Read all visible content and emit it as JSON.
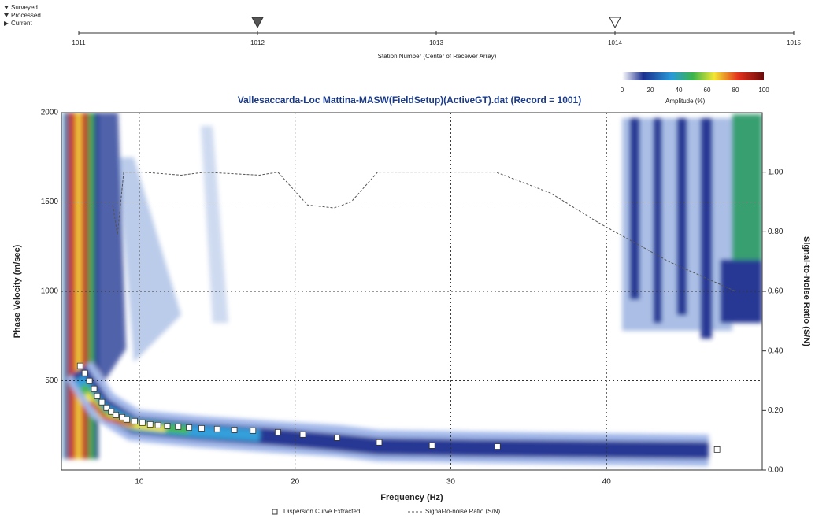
{
  "station_bar": {
    "legend": [
      "Surveyed",
      "Processed",
      "Current"
    ],
    "xlim": [
      1011,
      1015
    ],
    "ticks": [
      1011,
      1012,
      1013,
      1014,
      1015
    ],
    "label": "Station Number (Center of Receiver Array)",
    "marked": [
      1012,
      1014
    ]
  },
  "chart_data": {
    "type": "scatter",
    "title": "Vallesaccarda-Loc Mattina-MASW(FieldSetup)(ActiveGT).dat (Record = 1001)",
    "xlabel": "Frequency (Hz)",
    "ylabel": "Phase Velocity (m/sec)",
    "y2label": "Signal-to-Noise Ratio (S/N)",
    "xlim": [
      5,
      50
    ],
    "xticks": [
      10,
      20,
      30,
      40
    ],
    "ylim": [
      0,
      2000
    ],
    "yticks": [
      500,
      1000,
      1500,
      2000
    ],
    "y2lim": [
      0,
      1.2
    ],
    "y2ticks": [
      {
        "value": 0,
        "label": "0.00"
      },
      {
        "value": 0.2,
        "label": "0.20"
      },
      {
        "value": 0.4,
        "label": "0.40"
      },
      {
        "value": 0.6,
        "label": "0.60"
      },
      {
        "value": 0.8,
        "label": "0.80"
      },
      {
        "value": 1,
        "label": "1.00"
      }
    ],
    "grid": true,
    "colorbar": {
      "label": "Amplitude (%)",
      "lim": [
        0,
        100
      ],
      "ticks": [
        0,
        20,
        40,
        60,
        80,
        100
      ]
    },
    "series": [
      {
        "name": "Dispersion Curve Extracted",
        "color": "#ffffff",
        "x": [
          6.2,
          6.5,
          6.8,
          7.1,
          7.3,
          7.6,
          7.9,
          8.2,
          8.5,
          8.9,
          9.2,
          9.7,
          10.2,
          10.7,
          11.2,
          11.8,
          12.5,
          13.2,
          14.0,
          15.0,
          16.1,
          17.3,
          18.9,
          20.5,
          22.7,
          25.4,
          28.8,
          33.0,
          47.1
        ],
        "values": [
          583,
          543,
          499,
          455,
          415,
          380,
          349,
          327,
          309,
          296,
          283,
          274,
          265,
          256,
          252,
          247,
          243,
          238,
          234,
          230,
          225,
          221,
          212,
          199,
          181,
          155,
          137,
          132,
          115
        ]
      },
      {
        "name": "Signal-to-noise Ratio (S/N)",
        "color": "#555555",
        "axis": "y2",
        "x": [
          8.3,
          8.6,
          9.0,
          10.2,
          12.7,
          14.2,
          17.7,
          18.9,
          20.8,
          22.5,
          23.6,
          25.3,
          32.9,
          36.4,
          39.5,
          44.0,
          48.3
        ],
        "values": [
          0.89,
          0.79,
          1.0,
          1.0,
          0.99,
          1.0,
          0.99,
          1.0,
          0.89,
          0.88,
          0.9,
          1.0,
          1.0,
          0.93,
          0.83,
          0.7,
          0.6
        ]
      }
    ]
  }
}
